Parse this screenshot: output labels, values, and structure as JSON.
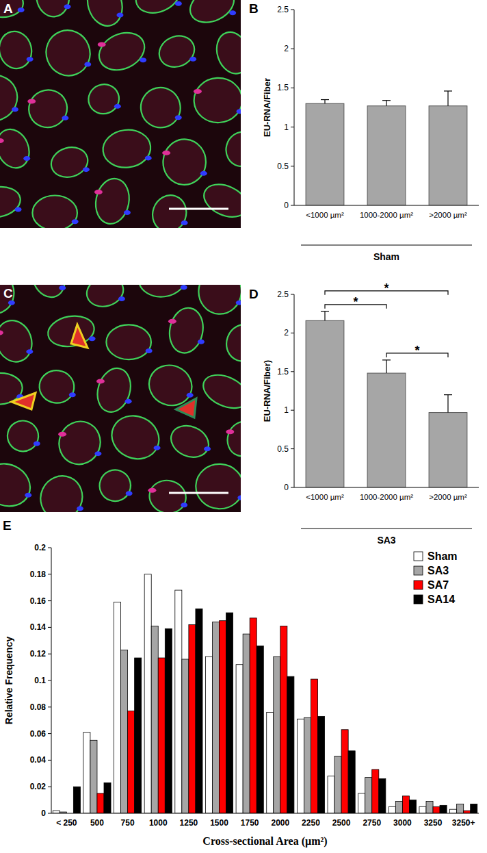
{
  "images": [
    {
      "panel": "A"
    },
    {
      "panel": "C"
    }
  ],
  "chart_data": [
    {
      "panel": "B",
      "type": "bar",
      "categories": [
        "<1000 µm²",
        "1000-2000 µm²",
        ">2000 µm²"
      ],
      "values": [
        1.3,
        1.27,
        1.27
      ],
      "errors": [
        0.05,
        0.07,
        0.19
      ],
      "color": "#a6a6a6",
      "ylabel": "EU-RNA/Fiber",
      "xlabel": "Sham",
      "ylim": [
        0,
        2.5
      ],
      "yticks": [
        0,
        0.5,
        1,
        1.5,
        2,
        2.5
      ],
      "grid": false
    },
    {
      "panel": "D",
      "type": "bar",
      "categories": [
        "<1000 µm²",
        "1000-2000 µm²",
        ">2000 µm²"
      ],
      "values": [
        2.16,
        1.48,
        0.97
      ],
      "errors": [
        0.12,
        0.17,
        0.23
      ],
      "color": "#a6a6a6",
      "ylabel": "EU-RNA/Fiber)",
      "xlabel": "SA3",
      "ylim": [
        0,
        2.5
      ],
      "yticks": [
        0,
        0.5,
        1,
        1.5,
        2,
        2.5
      ],
      "grid": false,
      "annotations": [
        {
          "text": "*",
          "from": 0,
          "to": 1
        },
        {
          "text": "*",
          "from": 0,
          "to": 2
        },
        {
          "text": "*",
          "from": 1,
          "to": 2
        }
      ]
    },
    {
      "panel": "E",
      "type": "bar",
      "categories": [
        "< 250",
        "500",
        "750",
        "1000",
        "1250",
        "1500",
        "1750",
        "2000",
        "2250",
        "2500",
        "2750",
        "3000",
        "3250",
        "3250+"
      ],
      "series": [
        {
          "name": "Sham",
          "color": "#ffffff",
          "values": [
            0.002,
            0.061,
            0.159,
            0.18,
            0.168,
            0.118,
            0.112,
            0.076,
            0.071,
            0.028,
            0.015,
            0.005,
            0.005,
            0.003
          ]
        },
        {
          "name": "SA3",
          "color": "#a6a6a6",
          "values": [
            0.001,
            0.055,
            0.123,
            0.141,
            0.116,
            0.144,
            0.135,
            0.118,
            0.072,
            0.043,
            0.027,
            0.009,
            0.009,
            0.007
          ]
        },
        {
          "name": "SA7",
          "color": "#ff0000",
          "values": [
            0.0,
            0.015,
            0.077,
            0.117,
            0.142,
            0.145,
            0.147,
            0.141,
            0.101,
            0.063,
            0.033,
            0.013,
            0.005,
            0.002
          ]
        },
        {
          "name": "SA14",
          "color": "#000000",
          "values": [
            0.02,
            0.023,
            0.117,
            0.139,
            0.154,
            0.151,
            0.126,
            0.103,
            0.073,
            0.047,
            0.026,
            0.01,
            0.006,
            0.007
          ]
        }
      ],
      "ylabel": "Relative Frequency",
      "xlabel": "Cross-sectional Area (µm²)",
      "ylim": [
        0,
        0.2
      ],
      "yticks": [
        0,
        0.02,
        0.04,
        0.06,
        0.08,
        0.1,
        0.12,
        0.14,
        0.16,
        0.18,
        0.2
      ],
      "legend": "top-right",
      "grid": false
    }
  ]
}
